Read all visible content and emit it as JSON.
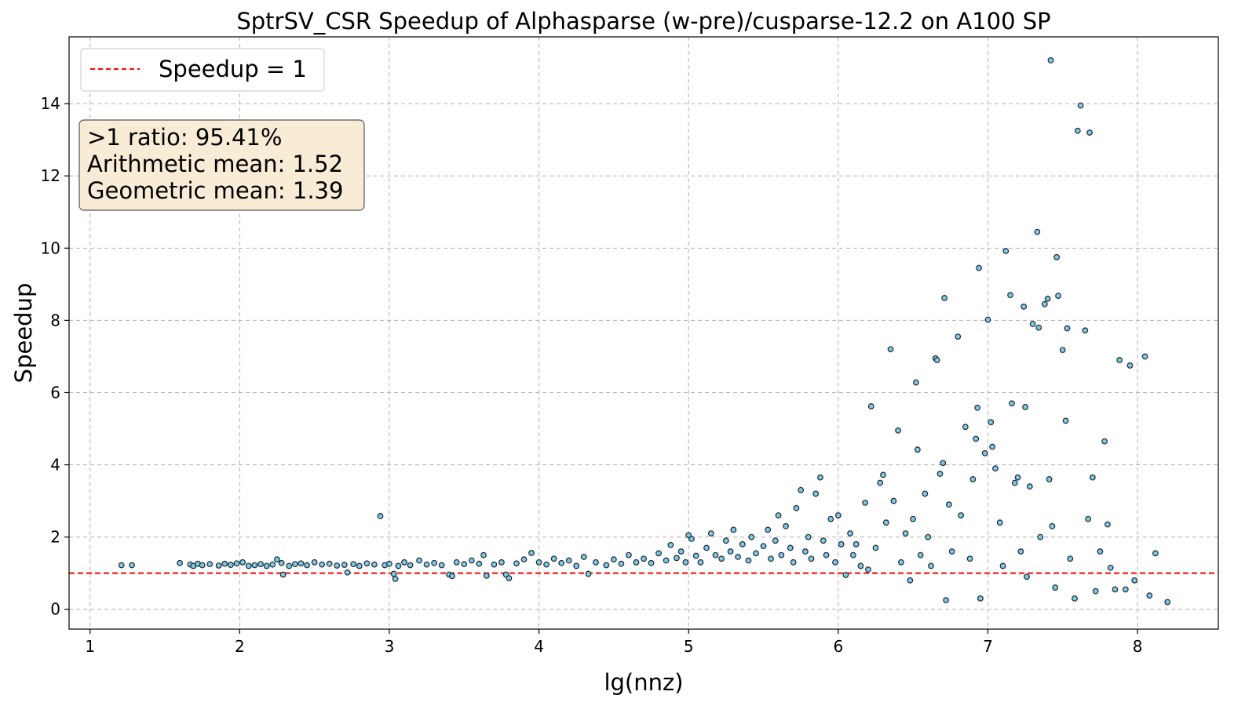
{
  "chart_data": {
    "type": "scatter",
    "title": "SptrSV_CSR Speedup of Alphasparse (w-pre)/cusparse-12.2 on A100 SP",
    "xlabel": "lg(nnz)",
    "ylabel": "Speedup",
    "xlim": [
      0.86,
      8.54
    ],
    "ylim": [
      -0.55,
      15.85
    ],
    "xticks": [
      1,
      2,
      3,
      4,
      5,
      6,
      7,
      8
    ],
    "yticks": [
      0,
      2,
      4,
      6,
      8,
      10,
      12,
      14
    ],
    "grid": true,
    "legend": {
      "placement": "top-left",
      "entries": [
        {
          "label": "Speedup = 1",
          "style": "red dashed line"
        }
      ]
    },
    "reference_line": {
      "y": 1,
      "color": "#ff0000",
      "style": "dashed"
    },
    "annotation": {
      "lines": [
        ">1 ratio: 95.41%",
        "Arithmetic mean: 1.52",
        "Geometric mean: 1.39"
      ],
      "placement": "top-left"
    },
    "colors": {
      "point_fill": "#7ec8e3",
      "point_edge": "#1f2a33",
      "reference": "#ff0000",
      "annotation_bg": "#f8ecd6",
      "annotation_edge": "#555555"
    },
    "series": [
      {
        "points": [
          [
            1.21,
            1.22
          ],
          [
            1.28,
            1.22
          ],
          [
            1.6,
            1.28
          ],
          [
            1.67,
            1.24
          ],
          [
            1.69,
            1.2
          ],
          [
            1.72,
            1.26
          ],
          [
            1.75,
            1.22
          ],
          [
            1.8,
            1.25
          ],
          [
            1.86,
            1.21
          ],
          [
            1.9,
            1.26
          ],
          [
            1.94,
            1.23
          ],
          [
            1.98,
            1.27
          ],
          [
            2.02,
            1.3
          ],
          [
            2.06,
            1.2
          ],
          [
            2.1,
            1.22
          ],
          [
            2.14,
            1.25
          ],
          [
            2.18,
            1.2
          ],
          [
            2.22,
            1.24
          ],
          [
            2.25,
            1.38
          ],
          [
            2.28,
            1.28
          ],
          [
            2.29,
            0.96
          ],
          [
            2.33,
            1.2
          ],
          [
            2.37,
            1.25
          ],
          [
            2.41,
            1.27
          ],
          [
            2.45,
            1.22
          ],
          [
            2.5,
            1.3
          ],
          [
            2.55,
            1.24
          ],
          [
            2.6,
            1.26
          ],
          [
            2.65,
            1.21
          ],
          [
            2.7,
            1.23
          ],
          [
            2.72,
            1.02
          ],
          [
            2.76,
            1.25
          ],
          [
            2.8,
            1.2
          ],
          [
            2.85,
            1.27
          ],
          [
            2.9,
            1.24
          ],
          [
            2.94,
            2.58
          ],
          [
            2.97,
            1.22
          ],
          [
            3.0,
            1.26
          ],
          [
            3.03,
            0.98
          ],
          [
            3.04,
            0.84
          ],
          [
            3.06,
            1.2
          ],
          [
            3.1,
            1.3
          ],
          [
            3.14,
            1.22
          ],
          [
            3.2,
            1.35
          ],
          [
            3.25,
            1.24
          ],
          [
            3.3,
            1.28
          ],
          [
            3.35,
            1.22
          ],
          [
            3.4,
            0.96
          ],
          [
            3.42,
            0.92
          ],
          [
            3.45,
            1.3
          ],
          [
            3.5,
            1.25
          ],
          [
            3.55,
            1.35
          ],
          [
            3.6,
            1.26
          ],
          [
            3.63,
            1.5
          ],
          [
            3.65,
            0.93
          ],
          [
            3.7,
            1.24
          ],
          [
            3.75,
            1.3
          ],
          [
            3.78,
            0.96
          ],
          [
            3.8,
            0.86
          ],
          [
            3.85,
            1.27
          ],
          [
            3.9,
            1.38
          ],
          [
            3.95,
            1.56
          ],
          [
            4.0,
            1.3
          ],
          [
            4.05,
            1.24
          ],
          [
            4.1,
            1.4
          ],
          [
            4.15,
            1.28
          ],
          [
            4.2,
            1.35
          ],
          [
            4.25,
            1.2
          ],
          [
            4.3,
            1.45
          ],
          [
            4.33,
            0.98
          ],
          [
            4.38,
            1.3
          ],
          [
            4.45,
            1.22
          ],
          [
            4.5,
            1.38
          ],
          [
            4.55,
            1.26
          ],
          [
            4.6,
            1.5
          ],
          [
            4.65,
            1.3
          ],
          [
            4.7,
            1.4
          ],
          [
            4.75,
            1.28
          ],
          [
            4.8,
            1.55
          ],
          [
            4.85,
            1.35
          ],
          [
            4.88,
            1.78
          ],
          [
            4.92,
            1.42
          ],
          [
            4.95,
            1.6
          ],
          [
            4.98,
            1.3
          ],
          [
            5.0,
            2.05
          ],
          [
            5.02,
            1.95
          ],
          [
            5.05,
            1.48
          ],
          [
            5.08,
            1.3
          ],
          [
            5.12,
            1.7
          ],
          [
            5.15,
            2.1
          ],
          [
            5.18,
            1.5
          ],
          [
            5.22,
            1.4
          ],
          [
            5.25,
            1.9
          ],
          [
            5.28,
            1.6
          ],
          [
            5.3,
            2.2
          ],
          [
            5.33,
            1.45
          ],
          [
            5.36,
            1.8
          ],
          [
            5.4,
            1.35
          ],
          [
            5.42,
            2.0
          ],
          [
            5.45,
            1.55
          ],
          [
            5.5,
            1.75
          ],
          [
            5.53,
            2.2
          ],
          [
            5.55,
            1.4
          ],
          [
            5.58,
            1.9
          ],
          [
            5.6,
            2.6
          ],
          [
            5.62,
            1.5
          ],
          [
            5.65,
            2.3
          ],
          [
            5.68,
            1.7
          ],
          [
            5.7,
            1.3
          ],
          [
            5.72,
            2.8
          ],
          [
            5.75,
            3.3
          ],
          [
            5.78,
            1.6
          ],
          [
            5.8,
            2.0
          ],
          [
            5.82,
            1.4
          ],
          [
            5.85,
            3.2
          ],
          [
            5.88,
            3.65
          ],
          [
            5.9,
            1.9
          ],
          [
            5.92,
            1.5
          ],
          [
            5.95,
            2.5
          ],
          [
            5.98,
            1.3
          ],
          [
            6.0,
            2.6
          ],
          [
            6.02,
            1.8
          ],
          [
            6.05,
            0.95
          ],
          [
            6.08,
            2.1
          ],
          [
            6.1,
            1.5
          ],
          [
            6.12,
            1.8
          ],
          [
            6.15,
            1.2
          ],
          [
            6.18,
            2.95
          ],
          [
            6.2,
            1.1
          ],
          [
            6.22,
            5.62
          ],
          [
            6.25,
            1.7
          ],
          [
            6.28,
            3.5
          ],
          [
            6.3,
            3.72
          ],
          [
            6.32,
            2.4
          ],
          [
            6.35,
            7.2
          ],
          [
            6.37,
            3.0
          ],
          [
            6.4,
            4.95
          ],
          [
            6.42,
            1.3
          ],
          [
            6.45,
            2.1
          ],
          [
            6.48,
            0.8
          ],
          [
            6.5,
            2.5
          ],
          [
            6.52,
            6.28
          ],
          [
            6.53,
            4.42
          ],
          [
            6.55,
            1.5
          ],
          [
            6.58,
            3.2
          ],
          [
            6.6,
            2.0
          ],
          [
            6.62,
            1.2
          ],
          [
            6.65,
            6.95
          ],
          [
            6.66,
            6.9
          ],
          [
            6.68,
            3.75
          ],
          [
            6.7,
            4.05
          ],
          [
            6.71,
            8.62
          ],
          [
            6.72,
            0.25
          ],
          [
            6.74,
            2.9
          ],
          [
            6.76,
            1.6
          ],
          [
            6.8,
            7.55
          ],
          [
            6.82,
            2.6
          ],
          [
            6.85,
            5.05
          ],
          [
            6.88,
            1.4
          ],
          [
            6.9,
            3.6
          ],
          [
            6.92,
            4.72
          ],
          [
            6.93,
            5.58
          ],
          [
            6.94,
            9.45
          ],
          [
            6.95,
            0.3
          ],
          [
            6.98,
            4.32
          ],
          [
            7.0,
            8.02
          ],
          [
            7.02,
            5.18
          ],
          [
            7.03,
            4.5
          ],
          [
            7.05,
            3.9
          ],
          [
            7.08,
            2.4
          ],
          [
            7.1,
            1.2
          ],
          [
            7.12,
            9.92
          ],
          [
            7.15,
            8.7
          ],
          [
            7.16,
            5.7
          ],
          [
            7.18,
            3.5
          ],
          [
            7.2,
            3.65
          ],
          [
            7.22,
            1.6
          ],
          [
            7.24,
            8.38
          ],
          [
            7.25,
            5.6
          ],
          [
            7.26,
            0.9
          ],
          [
            7.28,
            3.4
          ],
          [
            7.3,
            7.9
          ],
          [
            7.33,
            10.45
          ],
          [
            7.34,
            7.8
          ],
          [
            7.35,
            2.0
          ],
          [
            7.38,
            8.45
          ],
          [
            7.4,
            8.6
          ],
          [
            7.41,
            3.6
          ],
          [
            7.42,
            15.2
          ],
          [
            7.43,
            2.3
          ],
          [
            7.45,
            0.6
          ],
          [
            7.46,
            9.75
          ],
          [
            7.47,
            8.68
          ],
          [
            7.5,
            7.18
          ],
          [
            7.52,
            5.22
          ],
          [
            7.53,
            7.78
          ],
          [
            7.55,
            1.4
          ],
          [
            7.58,
            0.3
          ],
          [
            7.6,
            13.25
          ],
          [
            7.62,
            13.95
          ],
          [
            7.65,
            7.72
          ],
          [
            7.67,
            2.5
          ],
          [
            7.68,
            13.2
          ],
          [
            7.7,
            3.65
          ],
          [
            7.72,
            0.5
          ],
          [
            7.75,
            1.6
          ],
          [
            7.78,
            4.65
          ],
          [
            7.8,
            2.35
          ],
          [
            7.82,
            1.15
          ],
          [
            7.85,
            0.55
          ],
          [
            7.88,
            6.9
          ],
          [
            7.92,
            0.55
          ],
          [
            7.95,
            6.75
          ],
          [
            7.98,
            0.8
          ],
          [
            8.05,
            7.0
          ],
          [
            8.08,
            0.38
          ],
          [
            8.12,
            1.55
          ],
          [
            8.2,
            0.2
          ]
        ]
      }
    ]
  }
}
